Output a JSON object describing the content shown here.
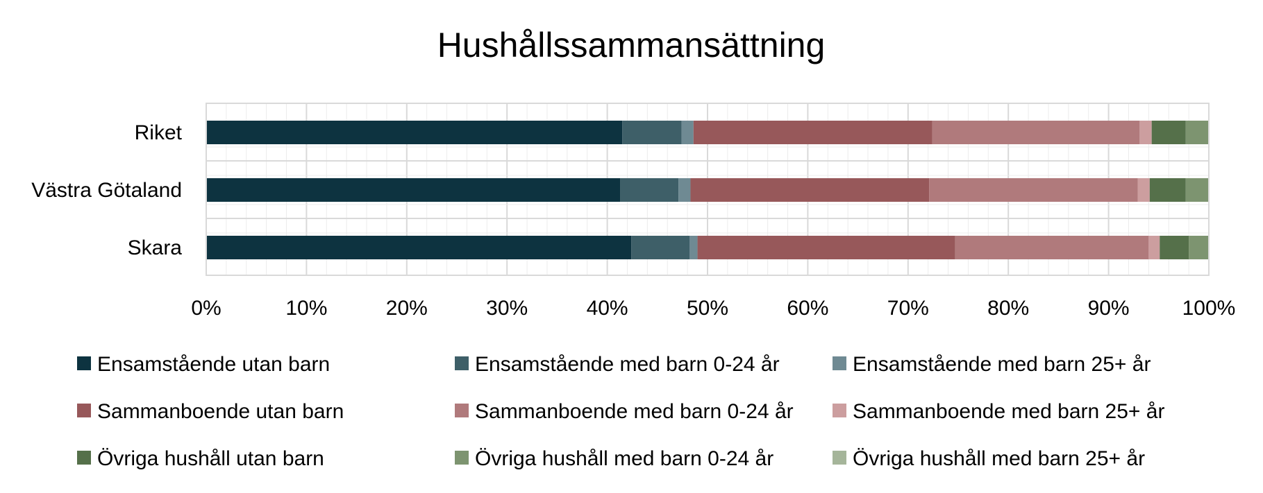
{
  "chart_data": {
    "type": "bar",
    "orientation": "horizontal",
    "stacked": true,
    "percent_stacked": true,
    "title": "Hushållssammansättning",
    "xlabel": "",
    "ylabel": "",
    "xlim": [
      0,
      100
    ],
    "x_ticks": [
      "0%",
      "10%",
      "20%",
      "30%",
      "40%",
      "50%",
      "60%",
      "70%",
      "80%",
      "90%",
      "100%"
    ],
    "grid": true,
    "legend_position": "bottom",
    "categories": [
      "Riket",
      "Västra Götaland",
      "Skara"
    ],
    "series": [
      {
        "name": "Ensamstående utan barn",
        "color": "#0d3340",
        "values": [
          41.5,
          41.3,
          42.4
        ]
      },
      {
        "name": "Ensamstående med barn 0-24 år",
        "color": "#3e5f68",
        "values": [
          5.9,
          5.8,
          5.8
        ]
      },
      {
        "name": "Ensamstående med barn 25+ år",
        "color": "#6f8a93",
        "values": [
          1.2,
          1.2,
          0.8
        ]
      },
      {
        "name": "Sammanboende utan barn",
        "color": "#97585a",
        "values": [
          23.8,
          23.8,
          25.7
        ]
      },
      {
        "name": "Sammanboende med barn 0-24 år",
        "color": "#b07a7c",
        "values": [
          20.7,
          20.8,
          19.3
        ]
      },
      {
        "name": "Sammanboende med barn 25+ år",
        "color": "#cc9e9f",
        "values": [
          1.2,
          1.2,
          1.1
        ]
      },
      {
        "name": "Övriga hushåll utan barn",
        "color": "#55704a",
        "values": [
          3.4,
          3.6,
          2.9
        ]
      },
      {
        "name": "Övriga hushåll med barn 0-24 år",
        "color": "#7d9470",
        "values": [
          2.3,
          2.3,
          2.0
        ]
      },
      {
        "name": "Övriga hushåll med barn 25+ år",
        "color": "#a5b59a",
        "values": [
          0.0,
          0.0,
          0.0
        ]
      }
    ]
  }
}
